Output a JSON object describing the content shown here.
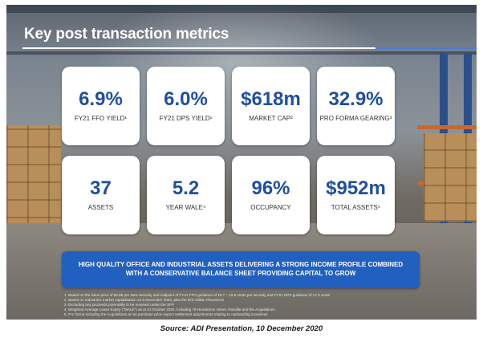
{
  "slide": {
    "title": "Key post transaction metrics",
    "metrics": [
      {
        "value": "6.9%",
        "label": "FY21 FFO YIELD¹"
      },
      {
        "value": "6.0%",
        "label": "FY21 DPS YIELD¹"
      },
      {
        "value": "$618m",
        "label": "MARKET CAP²"
      },
      {
        "value": "32.9%",
        "label": "PRO FORMA GEARING³"
      },
      {
        "value": "37",
        "label": "ASSETS"
      },
      {
        "value": "5.2",
        "label": "YEAR WALE⁴"
      },
      {
        "value": "96%",
        "label": "OCCUPANCY"
      },
      {
        "value": "$952m",
        "label": "TOTAL ASSETS⁵"
      }
    ],
    "banner": "HIGH QUALITY OFFICE AND INDUSTRIAL ASSETS DELIVERING A STRONG INCOME PROFILE COMBINED WITH A CONSERVATIVE BALANCE SHEET PROVIDING CAPITAL TO GROW",
    "footnotes": [
      "1. Based on the issue price of $2.88 per New Security and midpoint of FY21 FFO guidance of 19.7 – 19.9 cents per security and FY21 DPS guidance of 17.3 cents",
      "2. Based on Industria's market capitalisation on 9 December 2020, plus the $70 million Placement",
      "3. Excluding any proceeds potentially to be received under the SPP",
      "4. Weighted Average Lease Expiry (\"WALE\") as at 31 October 2020, including 78 Henderson Street, Rosville and the Acquisitions",
      "5. Pro forma including the Acquisitions at net purchase price expect settlement adjustments relating to outstanding incentives"
    ]
  },
  "caption": "Source: ADI Presentation, 10 December 2020",
  "colors": {
    "accent": "#1f4fa0",
    "banner": "#2260c0"
  }
}
